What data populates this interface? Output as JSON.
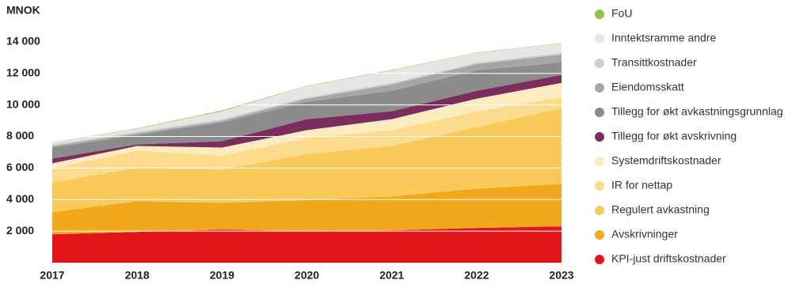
{
  "chart_data": {
    "type": "stacked-area",
    "y_axis_label": "MNOK",
    "categories": [
      "2017",
      "2018",
      "2019",
      "2020",
      "2021",
      "2022",
      "2023"
    ],
    "ylim": [
      0,
      15000
    ],
    "yticks": [
      {
        "value": 2000,
        "label": "2 000"
      },
      {
        "value": 4000,
        "label": "4 000"
      },
      {
        "value": 6000,
        "label": "6 000"
      },
      {
        "value": 8000,
        "label": "8 000"
      },
      {
        "value": 10000,
        "label": "10 000"
      },
      {
        "value": 12000,
        "label": "12 000"
      },
      {
        "value": 14000,
        "label": "14 000"
      }
    ],
    "grid": true,
    "series": [
      {
        "name": "KPI-just driftskostnader",
        "color": "#e3161b",
        "values": [
          1800,
          1950,
          2100,
          2000,
          2050,
          2200,
          2300
        ]
      },
      {
        "name": "Avskrivninger",
        "color": "#f2a81d",
        "values": [
          1400,
          1950,
          1700,
          1970,
          2150,
          2500,
          2700
        ]
      },
      {
        "name": "Regulert avkastning",
        "color": "#f9c95a",
        "values": [
          1900,
          2100,
          2100,
          2930,
          3200,
          3900,
          4800
        ]
      },
      {
        "name": "IR for nettap",
        "color": "#fcdb8f",
        "values": [
          900,
          1100,
          900,
          1000,
          1000,
          1000,
          700
        ]
      },
      {
        "name": "Systemdriftskostnader",
        "color": "#fdebc0",
        "values": [
          300,
          300,
          500,
          500,
          700,
          800,
          900
        ]
      },
      {
        "name": "Tillegg for økt avskrivning",
        "color": "#7b2d5e",
        "values": [
          300,
          100,
          400,
          700,
          500,
          500,
          500
        ]
      },
      {
        "name": "Tillegg for økt avkastningsgrunnlag",
        "color": "#8c8c8c",
        "values": [
          700,
          600,
          1200,
          1100,
          1300,
          1300,
          800
        ]
      },
      {
        "name": "Eiendomsskatt",
        "color": "#a6a6a6",
        "values": [
          100,
          100,
          100,
          200,
          400,
          400,
          500
        ]
      },
      {
        "name": "Transittkostnader",
        "color": "#cfcfcf",
        "values": [
          100,
          100,
          100,
          100,
          100,
          100,
          100
        ]
      },
      {
        "name": "Inntektsramme andre",
        "color": "#e6e6e6",
        "values": [
          100,
          200,
          500,
          700,
          800,
          600,
          600
        ]
      },
      {
        "name": "FoU",
        "color": "#8dc63f",
        "values": [
          20,
          20,
          50,
          20,
          20,
          20,
          20
        ]
      }
    ]
  }
}
